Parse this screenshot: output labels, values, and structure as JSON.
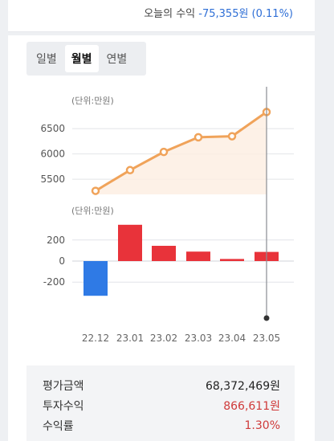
{
  "today_return": {
    "label": "오늘의 수익",
    "value": "-75,355원 (0.11%)"
  },
  "tabs": [
    {
      "label": "일별",
      "active": false
    },
    {
      "label": "월별",
      "active": true
    },
    {
      "label": "연별",
      "active": false
    }
  ],
  "colors": {
    "line": "#f0a35a",
    "area": "#fdeee3",
    "positive_bar": "#e8333a",
    "negative_bar": "#2f7ae5"
  },
  "chart_data": [
    {
      "type": "area",
      "unit_label": "(단위:만원)",
      "x": [
        "22.12",
        "23.01",
        "23.02",
        "23.03",
        "23.04",
        "23.05"
      ],
      "values": [
        5270,
        5680,
        6040,
        6330,
        6350,
        6830
      ],
      "yticks": [
        5500,
        6000,
        6500
      ],
      "ylim": [
        5200,
        6900
      ],
      "grid": true
    },
    {
      "type": "bar",
      "unit_label": "(단위:만원)",
      "categories": [
        "22.12",
        "23.01",
        "23.02",
        "23.03",
        "23.04",
        "23.05"
      ],
      "values": [
        -330,
        345,
        145,
        90,
        20,
        87
      ],
      "yticks": [
        -200,
        0,
        200
      ],
      "ylim": [
        -360,
        420
      ],
      "grid": true
    }
  ],
  "summary": [
    {
      "label": "평가금액",
      "value": "68,372,469원",
      "highlight": false
    },
    {
      "label": "투자수익",
      "value": "866,611원",
      "highlight": true
    },
    {
      "label": "수익률",
      "value": "1.30%",
      "highlight": true
    }
  ]
}
